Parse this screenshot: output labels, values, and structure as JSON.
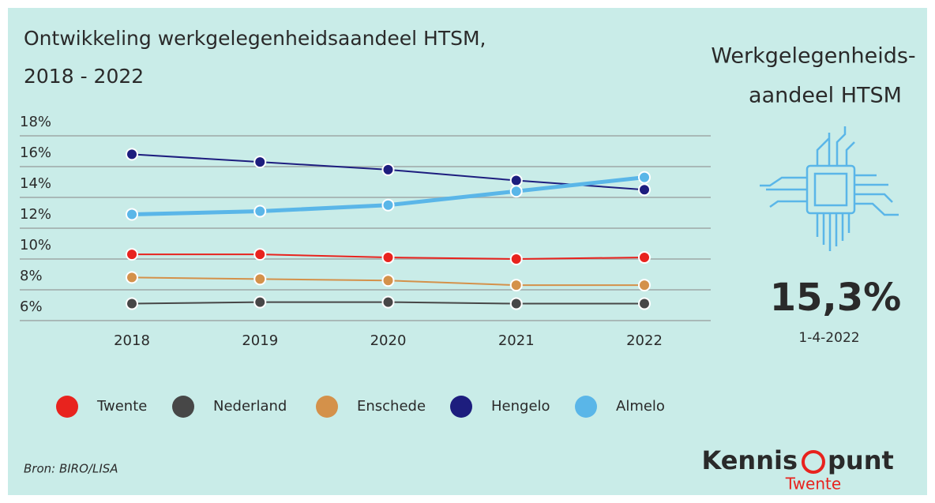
{
  "chart_data": {
    "type": "line",
    "title_lines": [
      "Ontwikkeling werkgelegenheidsaandeel HTSM,",
      "2018 - 2022"
    ],
    "categories": [
      "2018",
      "2019",
      "2020",
      "2021",
      "2022"
    ],
    "series": [
      {
        "name": "Twente",
        "color": "#e8231e",
        "line_width": 2,
        "values": [
          10.3,
          10.3,
          10.1,
          10.0,
          10.1
        ]
      },
      {
        "name": "Nederland",
        "color": "#474747",
        "line_width": 2,
        "values": [
          7.1,
          7.2,
          7.2,
          7.1,
          7.1
        ]
      },
      {
        "name": "Enschede",
        "color": "#d4914a",
        "line_width": 2,
        "values": [
          8.8,
          8.7,
          8.6,
          8.3,
          8.3
        ]
      },
      {
        "name": "Hengelo",
        "color": "#1d1d7e",
        "line_width": 2,
        "values": [
          16.8,
          16.3,
          15.8,
          15.1,
          14.5
        ]
      },
      {
        "name": "Almelo",
        "color": "#5ab6e8",
        "line_width": 5,
        "values": [
          12.9,
          13.1,
          13.5,
          14.4,
          15.3
        ]
      }
    ],
    "ylim": [
      6,
      18
    ],
    "yticks": [
      {
        "value": 6,
        "label": "6%"
      },
      {
        "value": 8,
        "label": "8%"
      },
      {
        "value": 10,
        "label": "10%"
      },
      {
        "value": 12,
        "label": "12%"
      },
      {
        "value": 14,
        "label": "14%"
      },
      {
        "value": 16,
        "label": "16%"
      },
      {
        "value": 18,
        "label": "18%"
      }
    ],
    "grid": true
  },
  "kpi": {
    "title_lines": [
      "Werkgelegenheids-",
      "aandeel HTSM"
    ],
    "value": "15,3%",
    "date": "1-4-2022"
  },
  "source": "Bron: BIRO/LISA",
  "logo": {
    "left": "Kennis",
    "right": "punt",
    "sub": "Twente"
  }
}
